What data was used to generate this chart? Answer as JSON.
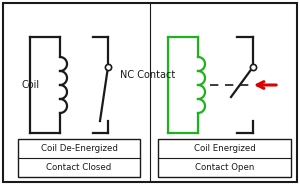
{
  "bg_color": "#ffffff",
  "black": "#1a1a1a",
  "green": "#1db31d",
  "red": "#dd0000",
  "text_coil": "Coil",
  "text_nc": "NC Contact",
  "text_left_top": "Coil De-Energized",
  "text_left_bot": "Contact Closed",
  "text_right_top": "Coil Energized",
  "text_right_bot": "Contact Open",
  "lw": 1.6
}
